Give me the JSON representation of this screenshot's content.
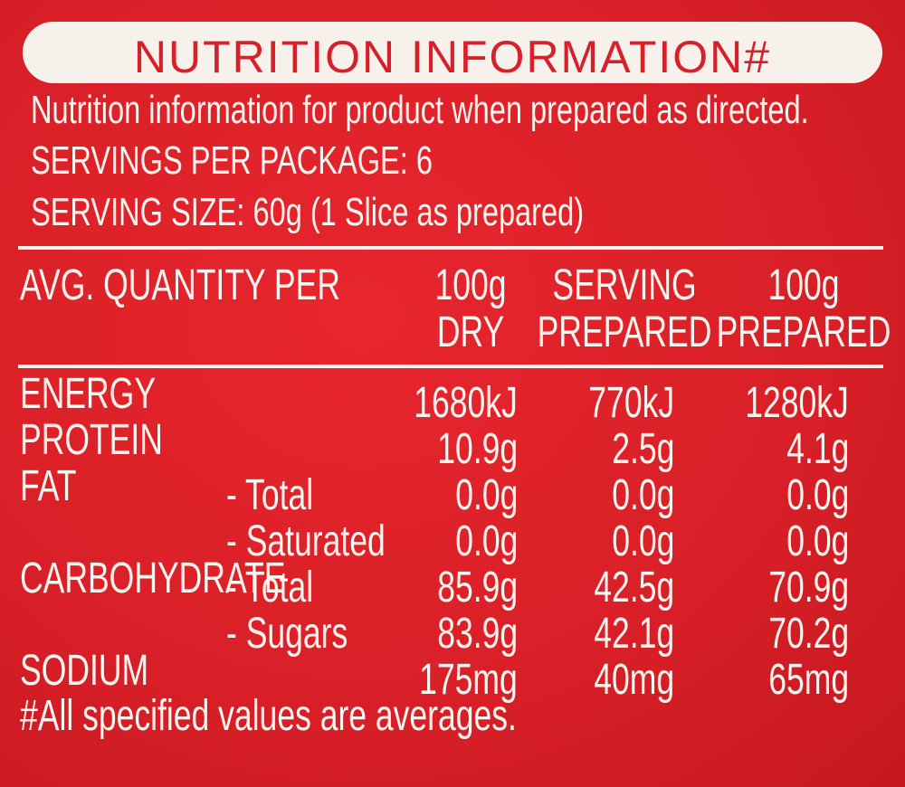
{
  "header": {
    "title": "NUTRITION INFORMATION#"
  },
  "intro": [
    "Nutrition information for product when prepared as directed.",
    "SERVINGS PER PACKAGE: 6",
    "SERVING SIZE: 60g (1 Slice as prepared)"
  ],
  "table": {
    "header_label": "AVG. QUANTITY PER",
    "columns": [
      [
        "100g",
        "DRY"
      ],
      [
        "SERVING",
        "PREPARED"
      ],
      [
        "100g",
        "PREPARED"
      ]
    ],
    "rows": [
      {
        "label": "ENERGY",
        "values": [
          "1680kJ",
          "770kJ",
          "1280kJ"
        ]
      },
      {
        "label": "PROTEIN",
        "values": [
          "10.9g",
          "2.5g",
          "4.1g"
        ]
      },
      {
        "label": "FAT",
        "sublabel": "- Total",
        "values": [
          "0.0g",
          "0.0g",
          "0.0g"
        ]
      },
      {
        "sublabel": "- Saturated",
        "values": [
          "0.0g",
          "0.0g",
          "0.0g"
        ]
      },
      {
        "label": "CARBOHYDRATE",
        "sublabel": "- Total",
        "values": [
          "85.9g",
          "42.5g",
          "70.9g"
        ]
      },
      {
        "sublabel": "- Sugars",
        "values": [
          "83.9g",
          "42.1g",
          "70.2g"
        ]
      },
      {
        "label": "SODIUM",
        "values": [
          "175mg",
          "40mg",
          "65mg"
        ]
      }
    ]
  },
  "footnote": "#All specified values are averages."
}
